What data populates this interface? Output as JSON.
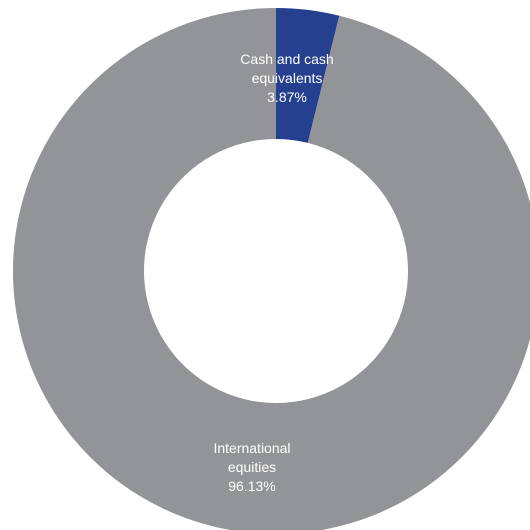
{
  "chart_data": {
    "type": "pie",
    "donut": true,
    "slices": [
      {
        "label_lines": [
          "Cash and cash",
          "equivalents"
        ],
        "value": 3.87,
        "display": "3.87%",
        "color": "#25408f"
      },
      {
        "label_lines": [
          "International",
          "equities"
        ],
        "value": 96.13,
        "display": "96.13%",
        "color": "#939497"
      }
    ]
  }
}
